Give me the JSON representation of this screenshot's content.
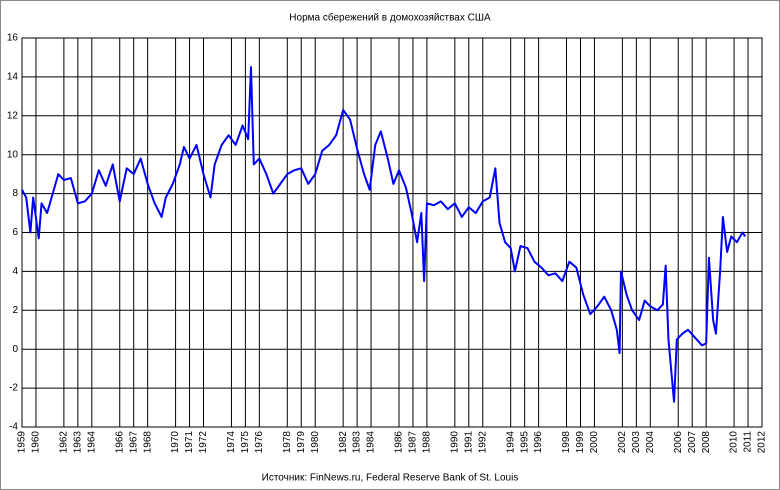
{
  "chart_data": {
    "type": "line",
    "title": "Норма сбережений в домохозяйствах США",
    "source": "Источник: FinNews.ru, Federal Reserve Bank of St. Louis",
    "xlim": [
      1959,
      2012
    ],
    "xticks": [
      1959,
      1960,
      1962,
      1963,
      1964,
      1966,
      1967,
      1968,
      1970,
      1971,
      1972,
      1974,
      1975,
      1976,
      1978,
      1979,
      1980,
      1982,
      1983,
      1984,
      1986,
      1987,
      1988,
      1990,
      1991,
      1992,
      1994,
      1995,
      1996,
      1998,
      1999,
      2000,
      2002,
      2003,
      2004,
      2006,
      2007,
      2008,
      2010,
      2011,
      2012
    ],
    "ylim": [
      -4,
      16
    ],
    "yticks": [
      -4,
      -2,
      0,
      2,
      4,
      6,
      8,
      10,
      12,
      14,
      16
    ],
    "grid": true,
    "series": [
      {
        "name": "Норма сбережений",
        "color": "#0000ff",
        "x": [
          1959.0,
          1959.3,
          1959.6,
          1959.8,
          1960.2,
          1960.4,
          1960.8,
          1961.2,
          1961.6,
          1962.0,
          1962.5,
          1963.0,
          1963.5,
          1964.0,
          1964.5,
          1965.0,
          1965.5,
          1966.0,
          1966.5,
          1967.0,
          1967.5,
          1968.0,
          1968.5,
          1969.0,
          1969.3,
          1969.8,
          1970.3,
          1970.6,
          1971.0,
          1971.5,
          1972.0,
          1972.5,
          1972.8,
          1973.3,
          1973.8,
          1974.3,
          1974.8,
          1975.2,
          1975.4,
          1975.6,
          1976.0,
          1976.5,
          1977.0,
          1977.5,
          1978.0,
          1978.5,
          1979.0,
          1979.5,
          1980.0,
          1980.5,
          1981.0,
          1981.5,
          1982.0,
          1982.5,
          1983.0,
          1983.5,
          1983.9,
          1984.3,
          1984.7,
          1985.2,
          1985.6,
          1986.0,
          1986.5,
          1986.9,
          1987.3,
          1987.6,
          1987.8,
          1988.0,
          1988.5,
          1989.0,
          1989.5,
          1990.0,
          1990.5,
          1991.0,
          1991.5,
          1992.0,
          1992.5,
          1992.9,
          1993.2,
          1993.6,
          1994.0,
          1994.3,
          1994.7,
          1995.2,
          1995.7,
          1996.2,
          1996.7,
          1997.2,
          1997.7,
          1998.2,
          1998.7,
          1999.2,
          1999.7,
          2000.2,
          2000.7,
          2001.2,
          2001.6,
          2001.8,
          2001.9,
          2002.3,
          2002.7,
          2003.2,
          2003.6,
          2004.0,
          2004.5,
          2004.9,
          2005.1,
          2005.3,
          2005.7,
          2005.9,
          2006.3,
          2006.7,
          2007.2,
          2007.7,
          2008.0,
          2008.2,
          2008.5,
          2008.7,
          2009.0,
          2009.2,
          2009.5,
          2009.8,
          2010.2,
          2010.6,
          2010.8
        ],
        "values": [
          8.2,
          7.8,
          6.0,
          7.8,
          5.7,
          7.5,
          7.0,
          8.0,
          9.0,
          8.7,
          8.8,
          7.5,
          7.6,
          8.0,
          9.2,
          8.4,
          9.5,
          7.6,
          9.3,
          9.0,
          9.8,
          8.5,
          7.5,
          6.8,
          7.8,
          8.5,
          9.5,
          10.4,
          9.8,
          10.5,
          9.0,
          7.8,
          9.5,
          10.5,
          11.0,
          10.5,
          11.5,
          10.8,
          14.5,
          9.5,
          9.8,
          9.0,
          8.0,
          8.5,
          9.0,
          9.2,
          9.3,
          8.5,
          9.0,
          10.2,
          10.5,
          11.0,
          12.3,
          11.8,
          10.3,
          9.0,
          8.2,
          10.5,
          11.2,
          9.8,
          8.5,
          9.2,
          8.3,
          7.0,
          5.5,
          7.0,
          3.5,
          7.5,
          7.4,
          7.6,
          7.2,
          7.5,
          6.8,
          7.3,
          7.0,
          7.6,
          7.8,
          9.3,
          6.5,
          5.5,
          5.2,
          4.0,
          5.3,
          5.2,
          4.5,
          4.2,
          3.8,
          3.9,
          3.5,
          4.5,
          4.2,
          2.8,
          1.8,
          2.2,
          2.7,
          2.0,
          1.0,
          -0.2,
          4.0,
          2.8,
          2.0,
          1.5,
          2.5,
          2.2,
          2.0,
          2.3,
          4.3,
          0.5,
          -2.7,
          0.5,
          0.8,
          1.0,
          0.6,
          0.2,
          0.3,
          4.7,
          1.5,
          0.8,
          4.0,
          6.8,
          5.0,
          5.8,
          5.5,
          6.0,
          5.8
        ]
      }
    ]
  }
}
